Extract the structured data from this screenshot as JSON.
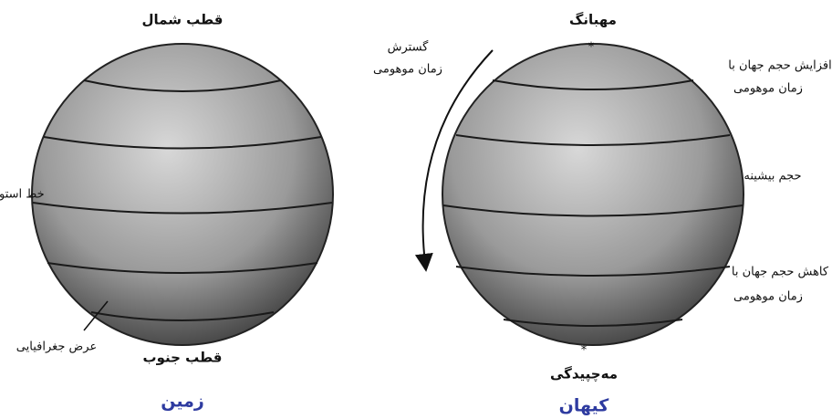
{
  "earth": {
    "north_pole": "قطب شمال",
    "equator": "خط استوا",
    "latitude": "عرض جغرافیایی",
    "south_pole": "قطب جنوب",
    "caption": "زمین"
  },
  "cosmos": {
    "big_bang": "مهبانگ",
    "expansion": [
      "گسترش",
      "زمان موهومی"
    ],
    "volume_increase": [
      "افزایش حجم جهان با",
      "زمان موهومی"
    ],
    "max_volume": "حجم بیشینه",
    "volume_decrease": [
      "کاهش حجم جهان با",
      "زمان موهومی"
    ],
    "big_crunch": "مه‌چپیدگی",
    "caption": "کیهان"
  }
}
